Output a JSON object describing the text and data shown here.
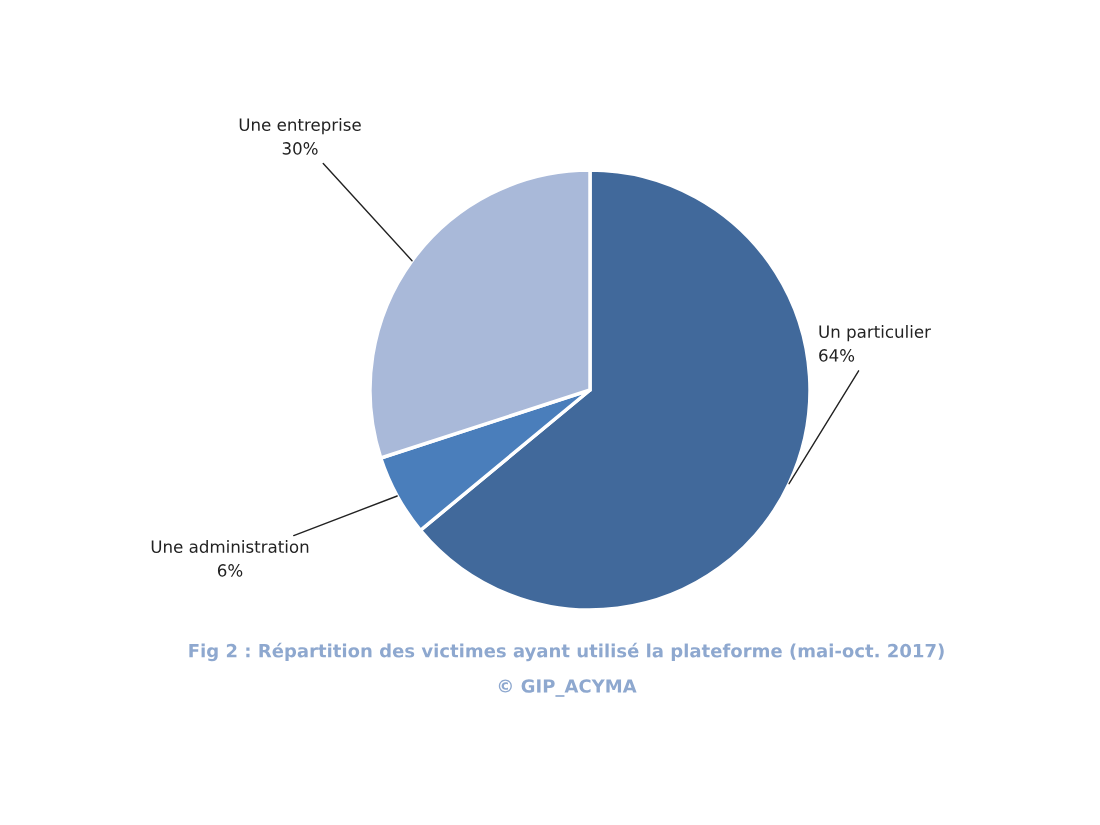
{
  "chart_data": {
    "type": "pie",
    "title": "Fig 2 : Répartition des victimes ayant utilisé la plateforme (mai-oct. 2017)",
    "categories": [
      "Un particulier",
      "Une administration",
      "Une entreprise"
    ],
    "values": [
      64,
      6,
      30
    ],
    "value_labels": [
      "64%",
      "6%",
      "30%"
    ],
    "colors": [
      "#41699b",
      "#4a7ebb",
      "#a9b9d9"
    ],
    "annotations": [
      "© GIP_ACYMA"
    ],
    "legend": false
  }
}
